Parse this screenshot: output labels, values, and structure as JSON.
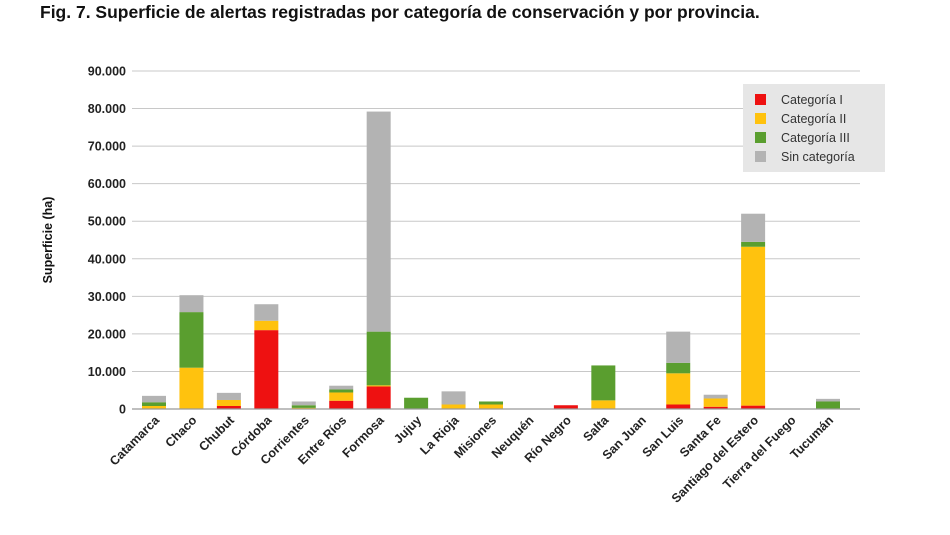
{
  "figure": {
    "title": "Fig. 7. Superficie de alertas registradas por categoría de conservación y por provincia."
  },
  "chart_data": {
    "type": "bar",
    "stacked": true,
    "title": "",
    "xlabel": "",
    "ylabel": "Superficie (ha)",
    "ylim": [
      0,
      90000
    ],
    "yticks": [
      0,
      10000,
      20000,
      30000,
      40000,
      50000,
      60000,
      70000,
      80000,
      90000
    ],
    "ytick_labels": [
      "0",
      "10.000",
      "20.000",
      "30.000",
      "40.000",
      "50.000",
      "60.000",
      "70.000",
      "80.000",
      "90.000"
    ],
    "grid": true,
    "legend_position": "top-right",
    "categories": [
      "Catamarca",
      "Chaco",
      "Chubut",
      "Córdoba",
      "Corrientes",
      "Entre Ríos",
      "Formosa",
      "Jujuy",
      "La Rioja",
      "Misiones",
      "Neuquén",
      "Río Negro",
      "Salta",
      "San Juan",
      "San Luis",
      "Santa Fe",
      "Santiago del Estero",
      "Tierra del Fuego",
      "Tucumán"
    ],
    "series": [
      {
        "name": "Categoría I",
        "color": "#ee1111",
        "values": [
          0,
          0,
          800,
          21000,
          0,
          2200,
          6000,
          0,
          0,
          0,
          0,
          1000,
          0,
          0,
          1200,
          600,
          900,
          0,
          0
        ]
      },
      {
        "name": "Categoría II",
        "color": "#ffc20e",
        "values": [
          800,
          11000,
          1600,
          2500,
          300,
          2200,
          300,
          0,
          1200,
          1200,
          0,
          0,
          2300,
          0,
          8300,
          2200,
          42300,
          0,
          0
        ]
      },
      {
        "name": "Categoría III",
        "color": "#5a9e2f",
        "values": [
          1000,
          14800,
          0,
          0,
          700,
          800,
          14300,
          3000,
          0,
          800,
          0,
          0,
          9300,
          0,
          2800,
          0,
          1300,
          0,
          2000
        ]
      },
      {
        "name": "Sin categoría",
        "color": "#b3b3b3",
        "values": [
          1700,
          4500,
          1900,
          4400,
          1000,
          1000,
          58600,
          0,
          3500,
          0,
          0,
          0,
          0,
          0,
          8300,
          1000,
          7500,
          0,
          700
        ]
      }
    ]
  }
}
